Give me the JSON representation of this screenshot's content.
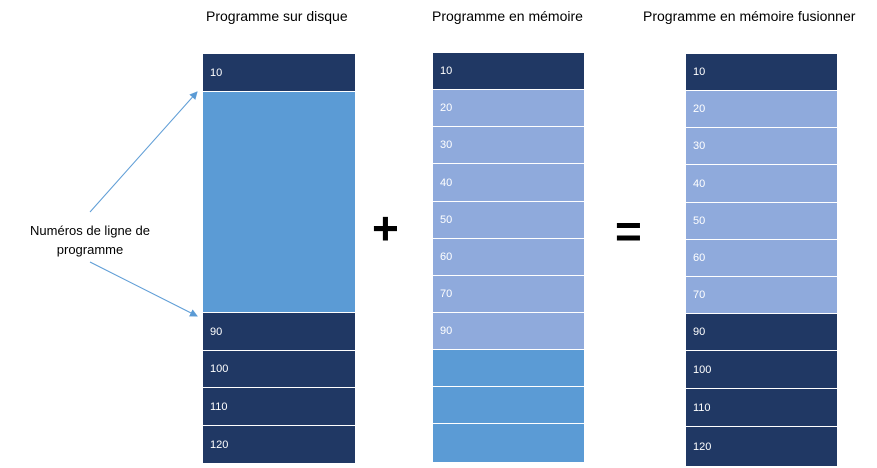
{
  "titles": {
    "disk": "Programme sur disque",
    "memory": "Programme en mémoire",
    "merged": "Programme en mémoire fusionner"
  },
  "annotation": "Numéros de ligne de programme",
  "operators": {
    "plus": "+",
    "equals": "="
  },
  "colors": {
    "dark": "#203864",
    "light": "#8faadc",
    "medium": "#5b9bd5"
  },
  "disk_column": [
    "10",
    "",
    "90",
    "100",
    "110",
    "120"
  ],
  "memory_column": [
    "10",
    "20",
    "30",
    "40",
    "50",
    "60",
    "70",
    "90",
    "",
    "",
    ""
  ],
  "merged_column": [
    "10",
    "20",
    "30",
    "40",
    "50",
    "60",
    "70",
    "90",
    "100",
    "110",
    "120"
  ]
}
